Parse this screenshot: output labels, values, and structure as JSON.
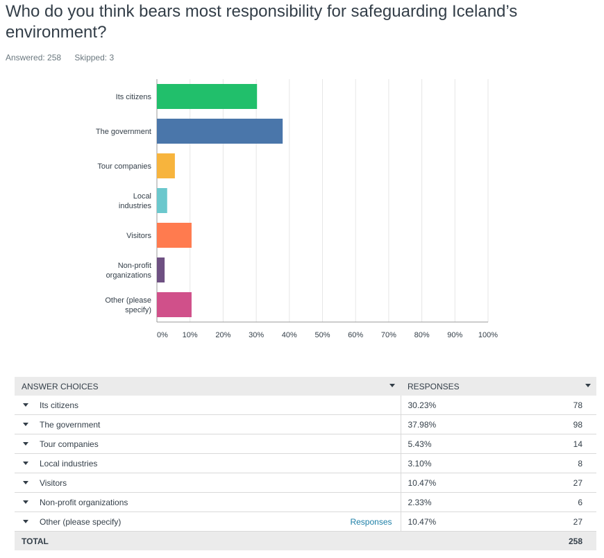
{
  "question": "Who do you think bears most responsibility for safeguarding Iceland’s environment?",
  "answered_label": "Answered: 258",
  "skipped_label": "Skipped: 3",
  "chart_data": {
    "type": "bar",
    "orientation": "horizontal",
    "categories": [
      [
        "Its citizens"
      ],
      [
        "The government"
      ],
      [
        "Tour companies"
      ],
      [
        "Local",
        "industries"
      ],
      [
        "Visitors"
      ],
      [
        "Non-profit",
        "organizations"
      ],
      [
        "Other (please",
        "specify)"
      ]
    ],
    "values": [
      30.23,
      37.98,
      5.43,
      3.1,
      10.47,
      2.33,
      10.47
    ],
    "colors": [
      "#21bf6b",
      "#4a76aa",
      "#f7b43d",
      "#6bc8cd",
      "#ff7b4f",
      "#6e5082",
      "#d0508a"
    ],
    "xlim": [
      0,
      100
    ],
    "xticks": [
      "0%",
      "10%",
      "20%",
      "30%",
      "40%",
      "50%",
      "60%",
      "70%",
      "80%",
      "90%",
      "100%"
    ],
    "grid": true
  },
  "table": {
    "header_choices": "ANSWER CHOICES",
    "header_responses": "RESPONSES",
    "rows": [
      {
        "choice": "Its citizens",
        "percent": "30.23%",
        "count": "78"
      },
      {
        "choice": "The government",
        "percent": "37.98%",
        "count": "98"
      },
      {
        "choice": "Tour companies",
        "percent": "5.43%",
        "count": "14"
      },
      {
        "choice": "Local industries",
        "percent": "3.10%",
        "count": "8"
      },
      {
        "choice": "Visitors",
        "percent": "10.47%",
        "count": "27"
      },
      {
        "choice": "Non-profit organizations",
        "percent": "2.33%",
        "count": "6"
      },
      {
        "choice": "Other (please specify)",
        "percent": "10.47%",
        "count": "27",
        "link": "Responses"
      }
    ],
    "total_label": "TOTAL",
    "total_count": "258"
  }
}
